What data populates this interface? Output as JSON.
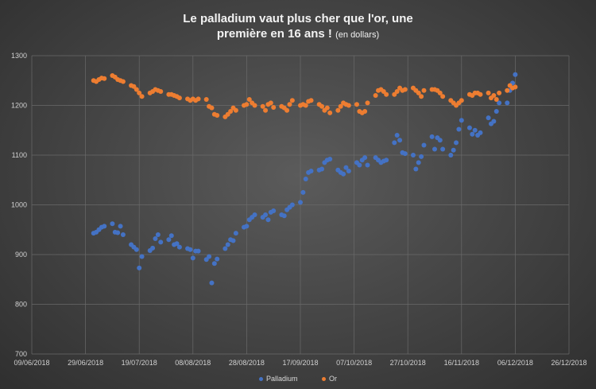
{
  "chart_data": {
    "type": "scatter",
    "title_line1": "Le palladium vaut plus cher que l'or, une",
    "title_line2": "première en 16 ans !",
    "title_note": "(en dollars)",
    "xlabel": "",
    "ylabel": "",
    "xlim": [
      "2018-06-09",
      "2018-12-26"
    ],
    "ylim": [
      700,
      1300
    ],
    "x_ticks": [
      "09/06/2018",
      "29/06/2018",
      "19/07/2018",
      "08/08/2018",
      "28/08/2018",
      "17/09/2018",
      "07/10/2018",
      "27/10/2018",
      "16/11/2018",
      "06/12/2018",
      "26/12/2018"
    ],
    "y_ticks": [
      700,
      800,
      900,
      1000,
      1100,
      1200,
      1300
    ],
    "grid": true,
    "legend_position": "bottom",
    "x": [
      "2018-07-02",
      "2018-07-03",
      "2018-07-04",
      "2018-07-05",
      "2018-07-06",
      "2018-07-09",
      "2018-07-10",
      "2018-07-11",
      "2018-07-12",
      "2018-07-13",
      "2018-07-16",
      "2018-07-17",
      "2018-07-18",
      "2018-07-19",
      "2018-07-20",
      "2018-07-23",
      "2018-07-24",
      "2018-07-25",
      "2018-07-26",
      "2018-07-27",
      "2018-07-30",
      "2018-07-31",
      "2018-08-01",
      "2018-08-02",
      "2018-08-03",
      "2018-08-06",
      "2018-08-07",
      "2018-08-08",
      "2018-08-09",
      "2018-08-10",
      "2018-08-13",
      "2018-08-14",
      "2018-08-15",
      "2018-08-16",
      "2018-08-17",
      "2018-08-20",
      "2018-08-21",
      "2018-08-22",
      "2018-08-23",
      "2018-08-24",
      "2018-08-27",
      "2018-08-28",
      "2018-08-29",
      "2018-08-30",
      "2018-08-31",
      "2018-09-03",
      "2018-09-04",
      "2018-09-05",
      "2018-09-06",
      "2018-09-07",
      "2018-09-10",
      "2018-09-11",
      "2018-09-12",
      "2018-09-13",
      "2018-09-14",
      "2018-09-17",
      "2018-09-18",
      "2018-09-19",
      "2018-09-20",
      "2018-09-21",
      "2018-09-24",
      "2018-09-25",
      "2018-09-26",
      "2018-09-27",
      "2018-09-28",
      "2018-10-01",
      "2018-10-02",
      "2018-10-03",
      "2018-10-04",
      "2018-10-05",
      "2018-10-08",
      "2018-10-09",
      "2018-10-10",
      "2018-10-11",
      "2018-10-12",
      "2018-10-15",
      "2018-10-16",
      "2018-10-17",
      "2018-10-18",
      "2018-10-19",
      "2018-10-22",
      "2018-10-23",
      "2018-10-24",
      "2018-10-25",
      "2018-10-26",
      "2018-10-29",
      "2018-10-30",
      "2018-10-31",
      "2018-11-01",
      "2018-11-02",
      "2018-11-05",
      "2018-11-06",
      "2018-11-07",
      "2018-11-08",
      "2018-11-09",
      "2018-11-12",
      "2018-11-13",
      "2018-11-14",
      "2018-11-15",
      "2018-11-16",
      "2018-11-19",
      "2018-11-20",
      "2018-11-21",
      "2018-11-22",
      "2018-11-23",
      "2018-11-26",
      "2018-11-27",
      "2018-11-28",
      "2018-11-29",
      "2018-11-30",
      "2018-12-03",
      "2018-12-04",
      "2018-12-05",
      "2018-12-06"
    ],
    "series": [
      {
        "name": "Palladium",
        "color": "#4472c4",
        "values": [
          943,
          945,
          950,
          955,
          957,
          962,
          945,
          944,
          957,
          940,
          920,
          915,
          910,
          873,
          896,
          908,
          913,
          932,
          940,
          925,
          930,
          938,
          920,
          922,
          915,
          912,
          910,
          893,
          907,
          907,
          890,
          896,
          843,
          882,
          891,
          912,
          920,
          930,
          928,
          943,
          955,
          957,
          970,
          975,
          980,
          975,
          980,
          970,
          985,
          988,
          980,
          978,
          990,
          995,
          1000,
          1005,
          1025,
          1052,
          1065,
          1068,
          1070,
          1072,
          1085,
          1090,
          1092,
          1070,
          1065,
          1062,
          1075,
          1068,
          1085,
          1080,
          1090,
          1095,
          1080,
          1095,
          1090,
          1085,
          1088,
          1090,
          1125,
          1140,
          1130,
          1105,
          1103,
          1100,
          1072,
          1085,
          1097,
          1120,
          1137,
          1112,
          1135,
          1130,
          1112,
          1100,
          1110,
          1125,
          1152,
          1170,
          1155,
          1142,
          1150,
          1140,
          1145,
          1175,
          1163,
          1168,
          1188,
          1205,
          1205,
          1230,
          1245,
          1262
        ]
      },
      {
        "name": "Or",
        "color": "#ed7d31",
        "values": [
          1250,
          1248,
          1252,
          1255,
          1254,
          1260,
          1257,
          1252,
          1250,
          1248,
          1240,
          1238,
          1232,
          1225,
          1218,
          1225,
          1228,
          1232,
          1230,
          1228,
          1222,
          1222,
          1220,
          1218,
          1215,
          1213,
          1210,
          1213,
          1210,
          1213,
          1212,
          1198,
          1195,
          1182,
          1180,
          1177,
          1182,
          1188,
          1195,
          1190,
          1200,
          1202,
          1212,
          1205,
          1200,
          1198,
          1190,
          1202,
          1205,
          1196,
          1198,
          1195,
          1190,
          1202,
          1210,
          1200,
          1202,
          1200,
          1208,
          1210,
          1202,
          1198,
          1190,
          1195,
          1185,
          1190,
          1198,
          1205,
          1202,
          1200,
          1202,
          1188,
          1185,
          1188,
          1205,
          1220,
          1230,
          1232,
          1228,
          1222,
          1222,
          1228,
          1235,
          1230,
          1232,
          1235,
          1230,
          1225,
          1218,
          1230,
          1232,
          1232,
          1230,
          1225,
          1218,
          1210,
          1205,
          1200,
          1205,
          1210,
          1222,
          1220,
          1225,
          1225,
          1222,
          1225,
          1215,
          1220,
          1212,
          1225,
          1230,
          1240,
          1235,
          1237
        ]
      }
    ]
  }
}
